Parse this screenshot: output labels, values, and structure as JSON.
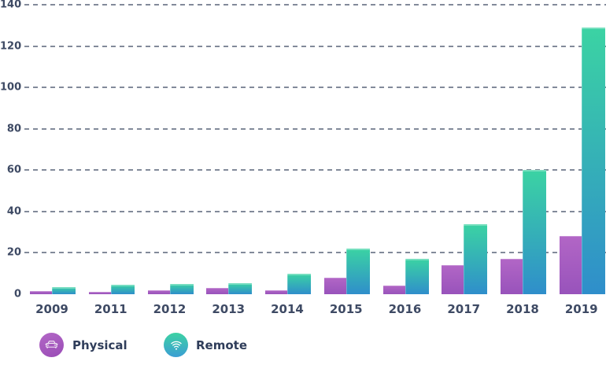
{
  "chart_data": {
    "type": "bar",
    "title": "",
    "xlabel": "",
    "ylabel": "",
    "categories": [
      "2009",
      "2011",
      "2012",
      "2013",
      "2014",
      "2015",
      "2016",
      "2017",
      "2018",
      "2019"
    ],
    "series": [
      {
        "name": "Physical",
        "icon": "car-icon",
        "color_top": "#b266c6",
        "color_bottom": "#9853bb",
        "values": [
          1.5,
          1,
          2,
          3,
          2,
          8,
          4,
          14,
          17,
          28
        ]
      },
      {
        "name": "Remote",
        "icon": "wifi-icon",
        "color_top": "#3bd3a3",
        "color_bottom": "#2f8ecb",
        "values": [
          3.5,
          4.5,
          5,
          5.5,
          10,
          22,
          17,
          34,
          60,
          129
        ]
      }
    ],
    "ylim": [
      0,
      140
    ],
    "yticks": [
      0,
      20,
      40,
      60,
      80,
      100,
      120,
      140
    ],
    "grid": "horizontal-dashed",
    "gridline_color": "#6c7688",
    "legend_position": "bottom-left",
    "background_color": "#ffffff",
    "axis_label_color": "#3e4a64"
  }
}
